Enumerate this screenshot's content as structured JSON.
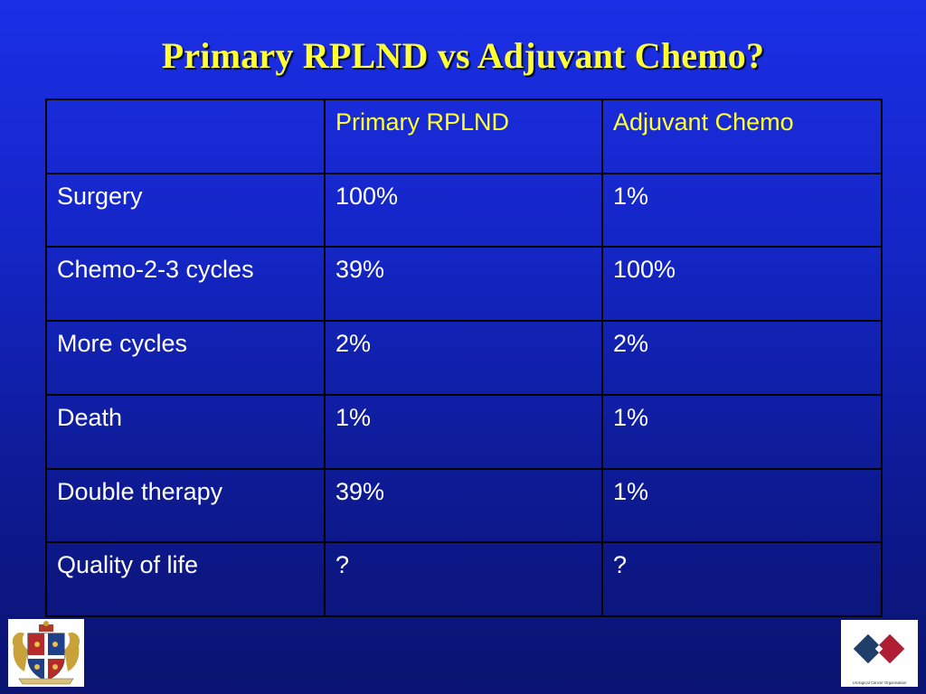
{
  "slide": {
    "title": "Primary RPLND vs Adjuvant Chemo?"
  },
  "table": {
    "header": [
      "",
      "Primary RPLND",
      "Adjuvant Chemo"
    ],
    "rows": [
      [
        "Surgery",
        "100%",
        "1%"
      ],
      [
        "Chemo-2-3 cycles",
        "39%",
        "100%"
      ],
      [
        "More cycles",
        "2%",
        "2%"
      ],
      [
        "Death",
        "1%",
        "1%"
      ],
      [
        "Double therapy",
        "39%",
        "1%"
      ],
      [
        "Quality of life",
        "?",
        "?"
      ]
    ]
  },
  "logos": {
    "left": {
      "icon": "coat-of-arms-icon"
    },
    "right": {
      "icon": "urological-cancer-organisation-logo",
      "caption": "Urological Cancer Organisation"
    }
  },
  "colors": {
    "background_top": "#1b2fe6",
    "background_bottom": "#0a1370",
    "title": "#ffff33",
    "header_text": "#ffff33",
    "body_text": "#ffffff",
    "grid": "#000000"
  }
}
